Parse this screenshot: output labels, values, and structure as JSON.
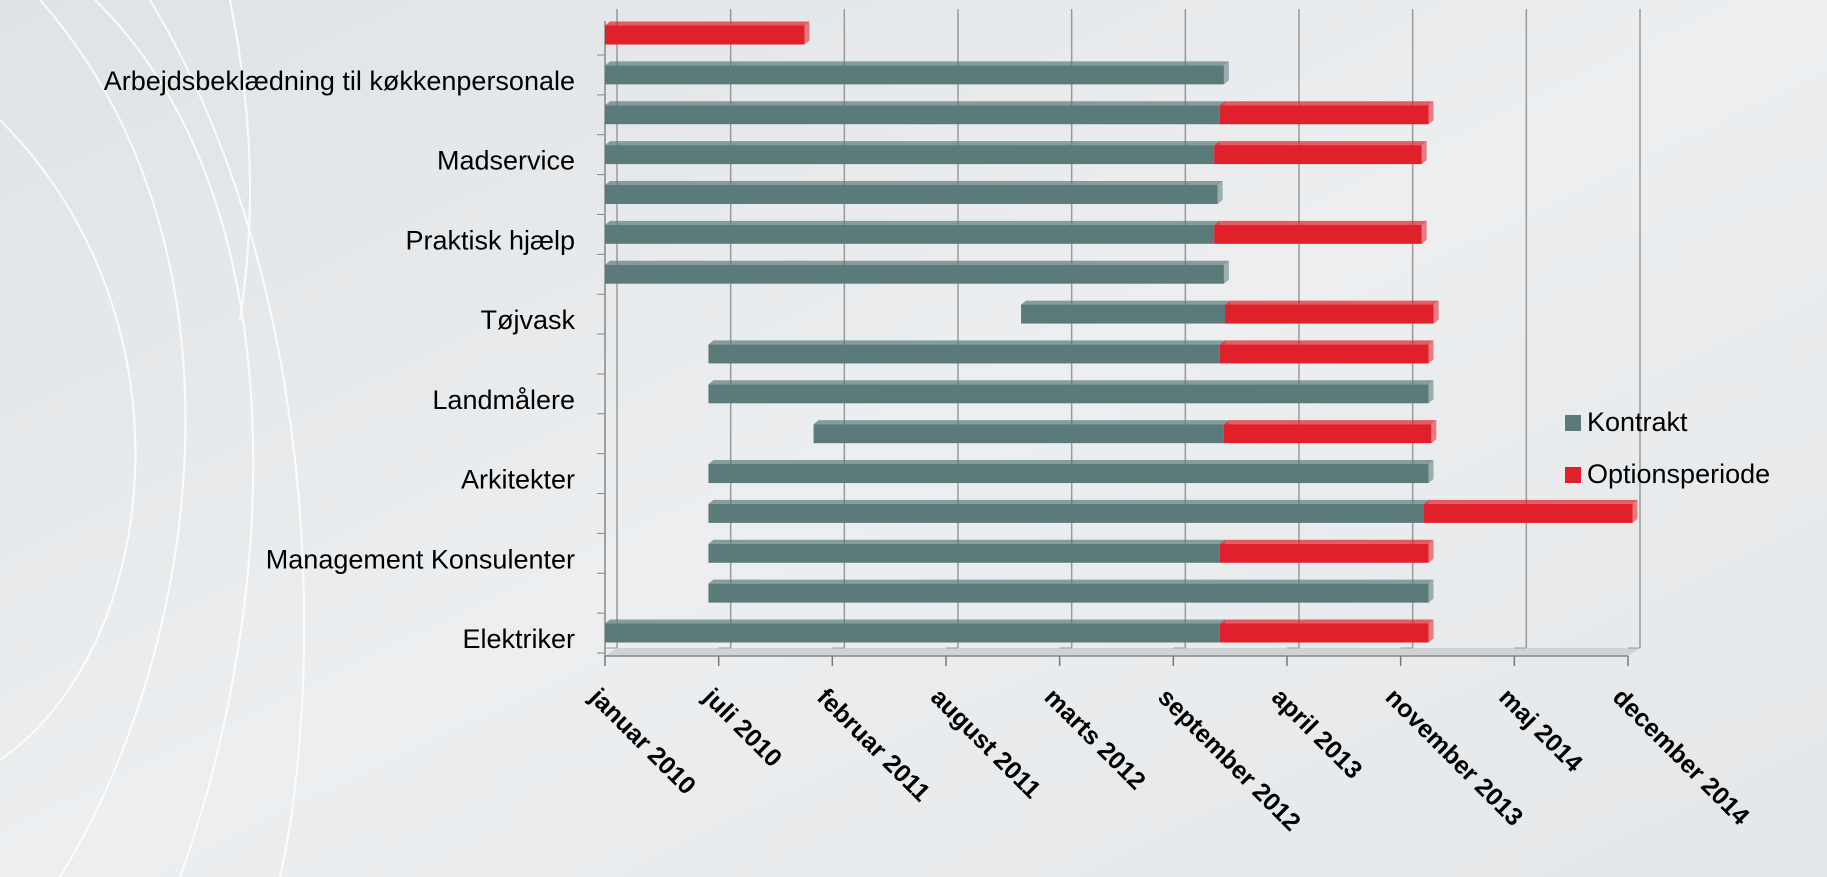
{
  "chart_data": {
    "type": "gantt",
    "categories": [
      "Elektriker",
      null,
      "Management Konsulenter",
      null,
      "Arkitekter",
      null,
      "Landmålere",
      null,
      "Tøjvask",
      null,
      "Praktisk hjælp",
      null,
      "Madservice",
      null,
      "Arbejdsbeklædning til køkkenpersonale",
      null
    ],
    "starts": [
      40179,
      40361,
      40361,
      40361,
      40361,
      40546,
      40361,
      40361,
      40911,
      40179,
      40179,
      40179,
      40179,
      40179,
      40179,
      40179
    ],
    "series": [
      {
        "name": "Kontrakt",
        "color": "#5b7b7a",
        "values": [
          1082,
          1267,
          900,
          1259,
          1267,
          722,
          1267,
          900,
          359,
          1089,
          1072,
          1078,
          1072,
          1082,
          1089,
          0
        ]
      },
      {
        "name": "Optionsperiode",
        "color": "#e0202a",
        "values": [
          367,
          0,
          367,
          367,
          0,
          365,
          0,
          367,
          367,
          0,
          365,
          0,
          365,
          367,
          0,
          351
        ]
      }
    ],
    "xlim": [
      40179,
      41979
    ],
    "xticks": [
      {
        "value": 40179,
        "label": "januar 2010"
      },
      {
        "value": 40379,
        "label": "juli 2010"
      },
      {
        "value": 40579,
        "label": "februar 2011"
      },
      {
        "value": 40779,
        "label": "august 2011"
      },
      {
        "value": 40979,
        "label": "marts 2012"
      },
      {
        "value": 41179,
        "label": "september 2012"
      },
      {
        "value": 41379,
        "label": "april 2013"
      },
      {
        "value": 41579,
        "label": "november 2013"
      },
      {
        "value": 41779,
        "label": "maj 2014"
      },
      {
        "value": 41979,
        "label": "december 2014"
      }
    ],
    "grid": true,
    "legend": "right"
  }
}
